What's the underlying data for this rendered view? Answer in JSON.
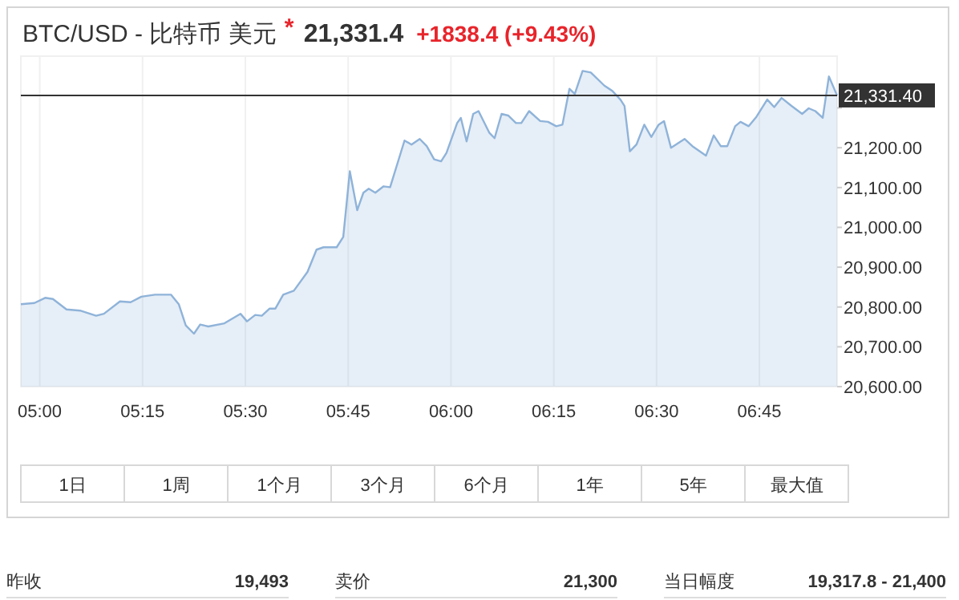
{
  "chart_data": {
    "type": "area",
    "title": "BTC/USD - 比特币 美元",
    "annotations": [
      "*",
      "21,331.4",
      "+1838.4 (+9.43%)",
      "1日",
      "1周",
      "1个月",
      "3个月",
      "6个月",
      "1年",
      "5年",
      "最大值",
      "昨收",
      "19,493",
      "卖价",
      "21,300",
      "当日幅度",
      "19,317.8 - 21,400"
    ],
    "x": [
      4.954,
      4.987,
      5.013,
      5.032,
      5.065,
      5.098,
      5.137,
      5.156,
      5.195,
      5.221,
      5.247,
      5.28,
      5.319,
      5.338,
      5.355,
      5.375,
      5.39,
      5.41,
      5.449,
      5.488,
      5.504,
      5.524,
      5.54,
      5.559,
      5.573,
      5.592,
      5.618,
      5.651,
      5.673,
      5.69,
      5.722,
      5.738,
      5.754,
      5.772,
      5.787,
      5.8,
      5.816,
      5.836,
      5.852,
      5.887,
      5.904,
      5.924,
      5.941,
      5.959,
      5.976,
      5.989,
      6.015,
      6.024,
      6.038,
      6.054,
      6.067,
      6.093,
      6.106,
      6.123,
      6.139,
      6.158,
      6.171,
      6.19,
      6.217,
      6.236,
      6.256,
      6.271,
      6.288,
      6.301,
      6.32,
      6.34,
      6.373,
      6.392,
      6.412,
      6.422,
      6.435,
      6.451,
      6.47,
      6.487,
      6.505,
      6.518,
      6.535,
      6.568,
      6.587,
      6.62,
      6.639,
      6.656,
      6.672,
      6.691,
      6.704,
      6.724,
      6.743,
      6.769,
      6.786,
      6.804,
      6.828,
      6.854,
      6.87,
      6.886,
      6.904,
      6.919,
      6.939
    ],
    "series": [
      {
        "color": "#8fb3d9",
        "values": [
          20807,
          20810,
          20823,
          20820,
          20794,
          20791,
          20778,
          20783,
          20814,
          20812,
          20826,
          20831,
          20831,
          20807,
          20754,
          20733,
          20756,
          20751,
          20759,
          20783,
          20764,
          20780,
          20778,
          20796,
          20796,
          20831,
          20841,
          20888,
          20944,
          20950,
          20950,
          20976,
          21141,
          21043,
          21087,
          21097,
          21087,
          21103,
          21101,
          21218,
          21208,
          21222,
          21204,
          21171,
          21166,
          21187,
          21262,
          21275,
          21216,
          21285,
          21292,
          21238,
          21224,
          21285,
          21281,
          21262,
          21262,
          21292,
          21267,
          21265,
          21254,
          21258,
          21348,
          21335,
          21393,
          21389,
          21356,
          21343,
          21321,
          21305,
          21191,
          21208,
          21258,
          21227,
          21258,
          21267,
          21200,
          21222,
          21204,
          21180,
          21231,
          21204,
          21204,
          21254,
          21265,
          21254,
          21278,
          21321,
          21302,
          21325,
          21305,
          21285,
          21299,
          21292,
          21275,
          21379,
          21331
        ]
      }
    ],
    "xlim": [
      4.954,
      6.939
    ],
    "ylim": [
      20600,
      21430
    ],
    "xticks": [
      {
        "value": 5,
        "label": "05:00"
      },
      {
        "value": 5.25,
        "label": "05:15"
      },
      {
        "value": 5.5,
        "label": "05:30"
      },
      {
        "value": 5.75,
        "label": "05:45"
      },
      {
        "value": 6,
        "label": "06:00"
      },
      {
        "value": 6.25,
        "label": "06:15"
      },
      {
        "value": 6.5,
        "label": "06:30"
      },
      {
        "value": 6.75,
        "label": "06:45"
      }
    ],
    "yticks": [
      {
        "value": 20600,
        "label": "20,600.00"
      },
      {
        "value": 20700,
        "label": "20,700.00"
      },
      {
        "value": 20800,
        "label": "20,800.00"
      },
      {
        "value": 20900,
        "label": "20,900.00"
      },
      {
        "value": 21000,
        "label": "21,000.00"
      },
      {
        "value": 21100,
        "label": "21,100.00"
      },
      {
        "value": 21200,
        "label": "21,200.00"
      },
      {
        "value": 21300,
        "label": null
      }
    ],
    "ref_lines": [
      {
        "axis": "y",
        "value": 21331.4,
        "label": "21,331.40",
        "color": "#333333"
      }
    ],
    "grid": "x"
  }
}
